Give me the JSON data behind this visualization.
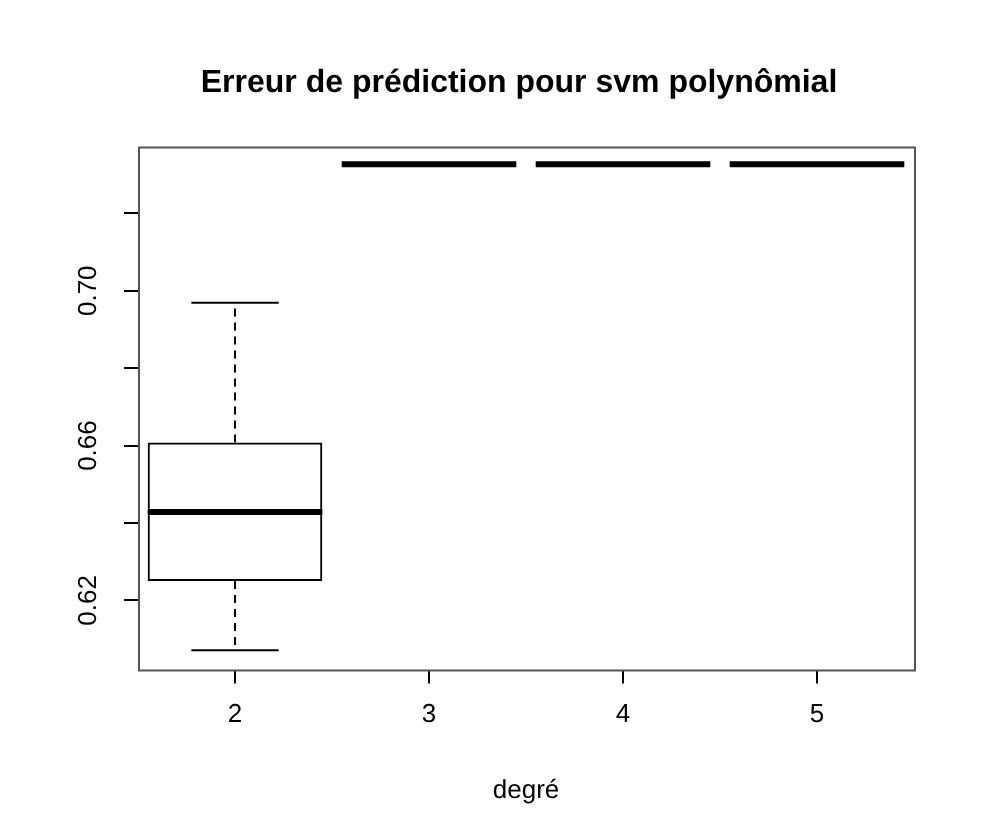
{
  "chart_data": {
    "type": "box",
    "title": "Erreur de prédiction pour svm polynômial",
    "xlabel": "degré",
    "categories": [
      "2",
      "3",
      "4",
      "5"
    ],
    "boxes": [
      {
        "low": 0.6071,
        "q1": 0.625,
        "median": 0.6428,
        "q3": 0.6608,
        "high": 0.6969
      },
      {
        "low": 0.7327,
        "q1": 0.7327,
        "median": 0.7327,
        "q3": 0.7327,
        "high": 0.7327
      },
      {
        "low": 0.7327,
        "q1": 0.7327,
        "median": 0.7327,
        "q3": 0.7327,
        "high": 0.7327
      },
      {
        "low": 0.7327,
        "q1": 0.7327,
        "median": 0.7327,
        "q3": 0.7327,
        "high": 0.7327
      }
    ],
    "ylim": [
      0.6021,
      0.7373
    ],
    "yticks": [
      0.62,
      {
        "value": 0.64,
        "label": null
      },
      0.66,
      {
        "value": 0.68,
        "label": null
      },
      {
        "value": 0.7,
        "label": "0.70"
      },
      {
        "value": 0.72,
        "label": null
      }
    ],
    "grid": false
  }
}
